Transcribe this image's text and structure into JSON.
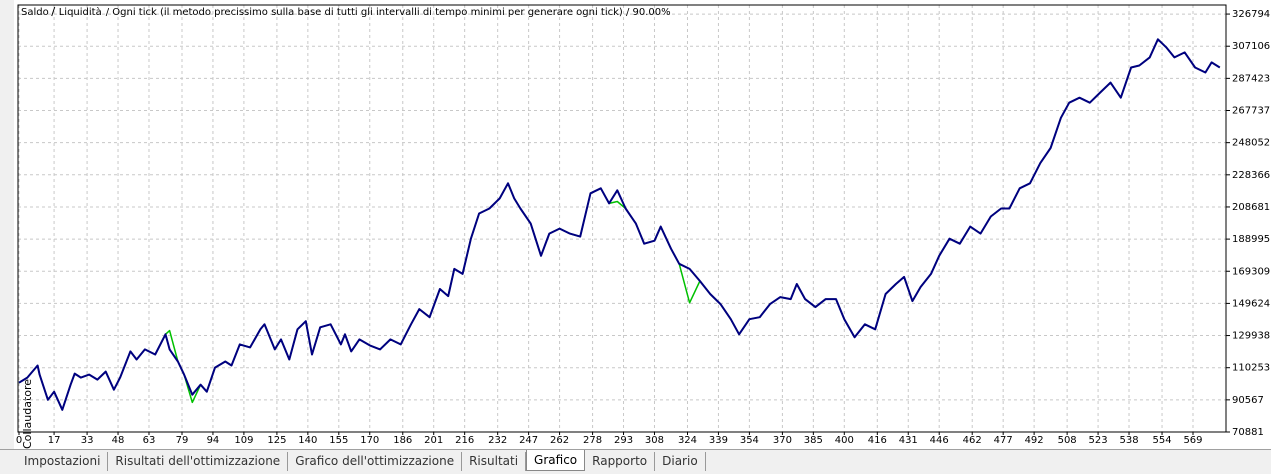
{
  "chart_data": {
    "type": "line",
    "subtitle": "/ Ogni tick (il metodo precissimo sulla base di tutti gli intervalli di tempo minimi per generare ogni tick) / 90.00%",
    "x": [
      0,
      4,
      9,
      10,
      14,
      17,
      21,
      25,
      27,
      30,
      34,
      38,
      42,
      46,
      49,
      54,
      57,
      61,
      66,
      71,
      73,
      77,
      80,
      84,
      88,
      91,
      95,
      100,
      103,
      107,
      112,
      117,
      119,
      124,
      127,
      131,
      135,
      139,
      142,
      146,
      151,
      156,
      158,
      161,
      165,
      170,
      175,
      180,
      185,
      190,
      194,
      199,
      204,
      208,
      211,
      215,
      219,
      223,
      228,
      233,
      237,
      240,
      243,
      248,
      253,
      257,
      262,
      267,
      272,
      277,
      282,
      286,
      290,
      294,
      299,
      303,
      308,
      311,
      316,
      320,
      325,
      330,
      335,
      340,
      345,
      349,
      354,
      359,
      364,
      369,
      374,
      377,
      381,
      386,
      391,
      396,
      400,
      405,
      410,
      415,
      420,
      425,
      429,
      433,
      437,
      442,
      446,
      451,
      456,
      461,
      466,
      471,
      476,
      480,
      485,
      490,
      495,
      500,
      505,
      509,
      514,
      519,
      524,
      529,
      534,
      539,
      543,
      548,
      552,
      556,
      560,
      565,
      570,
      575,
      578,
      582
    ],
    "series": [
      {
        "name": "Liquidità",
        "color": "#00c000",
        "values": [
          101094,
          104177,
          111577,
          106027,
          90612,
          95545,
          84446,
          99861,
          106644,
          104177,
          106027,
          102944,
          107877,
          96778,
          104177,
          120209,
          115276,
          121442,
          118359,
          130691,
          133000,
          114043,
          106027,
          89000,
          99861,
          95545,
          110343,
          114043,
          111577,
          124525,
          122675,
          133774,
          136857,
          121442,
          127608,
          115276,
          133774,
          138707,
          118359,
          135007,
          136857,
          124525,
          130691,
          120209,
          127608,
          123909,
          121442,
          127608,
          124525,
          136857,
          146106,
          141173,
          158438,
          154122,
          170770,
          167687,
          189268,
          204683,
          207766,
          213932,
          223181,
          213932,
          207766,
          198517,
          178786,
          192351,
          195434,
          192351,
          190501,
          217015,
          220098,
          210849,
          212000,
          207766,
          198517,
          186185,
          188035,
          196667,
          183102,
          173853,
          150000,
          163371,
          155355,
          149189,
          139940,
          130691,
          139940,
          141173,
          149189,
          153505,
          152272,
          161521,
          152272,
          147339,
          152272,
          152272,
          139940,
          128841,
          136857,
          133774,
          155355,
          161521,
          165837,
          151039,
          159671,
          167687,
          178786,
          189268,
          186185,
          196667,
          192351,
          202833,
          207766,
          207766,
          220098,
          223181,
          235513,
          244762,
          263260,
          272509,
          275592,
          272509,
          278675,
          284841,
          275592,
          294090,
          295323,
          300256,
          311355,
          306422,
          300256,
          303339,
          294090,
          291007,
          297173,
          294090
        ]
      },
      {
        "name": "Saldo",
        "color": "#000080",
        "values": [
          101094,
          104177,
          111577,
          106027,
          90612,
          95545,
          84446,
          99861,
          106644,
          104177,
          106027,
          102944,
          107877,
          96778,
          104177,
          120209,
          115276,
          121442,
          118359,
          130691,
          121442,
          114043,
          106027,
          93695,
          99861,
          95545,
          110343,
          114043,
          111577,
          124525,
          122675,
          133774,
          136857,
          121442,
          127608,
          115276,
          133774,
          138707,
          118359,
          135007,
          136857,
          124525,
          130691,
          120209,
          127608,
          123909,
          121442,
          127608,
          124525,
          136857,
          146106,
          141173,
          158438,
          154122,
          170770,
          167687,
          189268,
          204683,
          207766,
          213932,
          223181,
          213932,
          207766,
          198517,
          178786,
          192351,
          195434,
          192351,
          190501,
          217015,
          220098,
          210849,
          218865,
          207766,
          198517,
          186185,
          188035,
          196667,
          183102,
          173853,
          170770,
          163371,
          155355,
          149189,
          139940,
          130691,
          139940,
          141173,
          149189,
          153505,
          152272,
          161521,
          152272,
          147339,
          152272,
          152272,
          139940,
          128841,
          136857,
          133774,
          155355,
          161521,
          165837,
          151039,
          159671,
          167687,
          178786,
          189268,
          186185,
          196667,
          192351,
          202833,
          207766,
          207766,
          220098,
          223181,
          235513,
          244762,
          263260,
          272509,
          275592,
          272509,
          278675,
          284841,
          275592,
          294090,
          295323,
          300256,
          311355,
          306422,
          300256,
          303339,
          294090,
          291007,
          297173,
          294090
        ]
      }
    ],
    "xlim": [
      0,
      585
    ],
    "ylim": [
      70881,
      332344
    ],
    "xticks": [
      0,
      17,
      33,
      48,
      63,
      79,
      94,
      109,
      125,
      140,
      155,
      170,
      186,
      201,
      216,
      232,
      247,
      262,
      278,
      293,
      308,
      324,
      339,
      354,
      370,
      385,
      400,
      416,
      431,
      446,
      462,
      477,
      492,
      508,
      523,
      538,
      554,
      569
    ],
    "yticks": [
      326794,
      307106,
      287423,
      267737,
      248052,
      228366,
      208681,
      188995,
      169309,
      149624,
      129938,
      110253,
      90567,
      70881
    ],
    "grid": true
  },
  "side_label": "Collaudatore",
  "tabs": [
    "Impostazioni",
    "Risultati dell'ottimizzazione",
    "Grafico dell'ottimizzazione",
    "Risultati",
    "Grafico",
    "Rapporto",
    "Diario"
  ],
  "active_tab": "Grafico"
}
